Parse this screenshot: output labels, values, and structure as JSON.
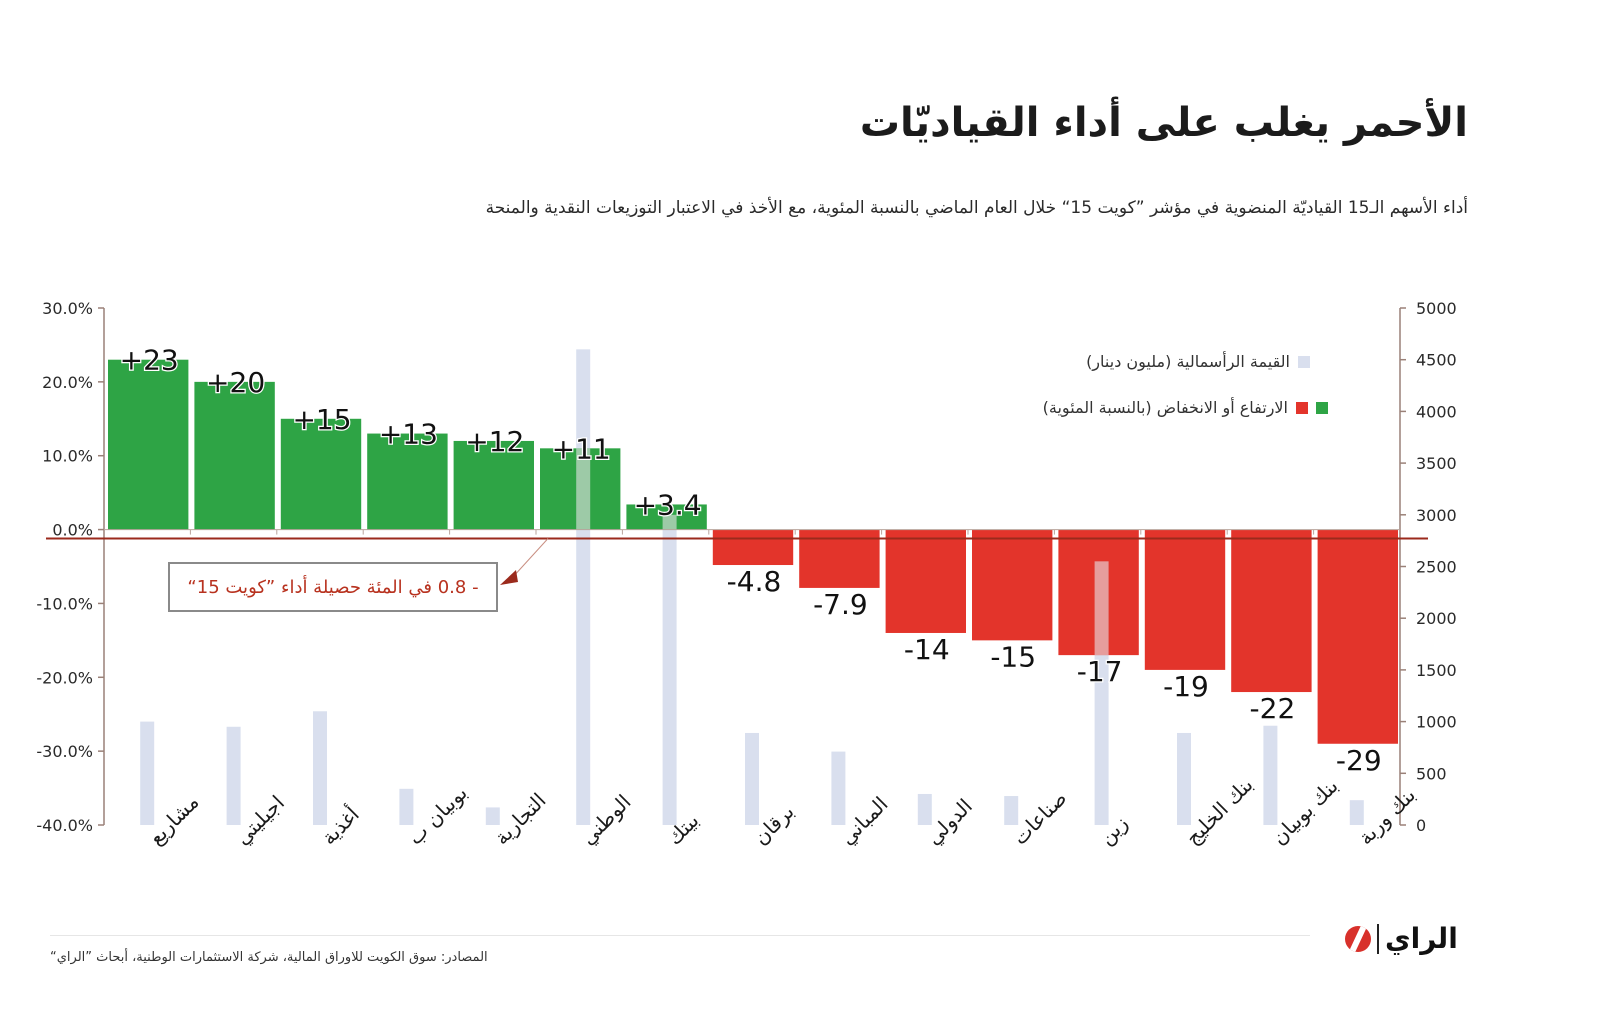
{
  "header": {
    "title": "الأحمر يغلب على أداء القياديّات",
    "subtitle": "أداء الأسهم الـ15 القياديّة المنضوية في مؤشر ”كويت 15“ خلال العام الماضي بالنسبة المئوية، مع الأخذ في الاعتبار التوزيعات النقدية والمنحة"
  },
  "legend": {
    "capital": "القيمة الرأسمالية (مليون دينار)",
    "change": "الارتفاع أو الانخفاض (بالنسبة المئوية)"
  },
  "callout": {
    "text": "- 0.8 في المئة حصيلة أداء ”كويت 15“",
    "value": -0.8
  },
  "footer": {
    "source": "المصادر: سوق الكويت للاوراق المالية، شركة الاستثمارات الوطنية، أبحاث ”الراي“",
    "logo_text": "الراي"
  },
  "colors": {
    "positive": "#2ea445",
    "negative": "#e3342b",
    "capital": "#d9dfee",
    "axis": "#9a8178",
    "zero_line": "#9b2a1c",
    "callout_text": "#b8321f"
  },
  "chart_data": {
    "type": "bar",
    "title": "الأحمر يغلب على أداء القياديّات",
    "categories": [
      "مشاريع",
      "اجيليتي",
      "أغذية",
      "بوبيان ب",
      "التجارية",
      "الوطني",
      "بيتك",
      "برقان",
      "المباني",
      "الدولي",
      "صناعات",
      "زين",
      "بنك الخليج",
      "بنك بوبيان",
      "بنك وربة"
    ],
    "series": [
      {
        "name": "الارتفاع أو الانخفاض (بالنسبة المئوية)",
        "axis": "left",
        "values": [
          23,
          20,
          15,
          13,
          12,
          11,
          3.4,
          -4.8,
          -7.9,
          -14,
          -15,
          -17,
          -19,
          -22,
          -29
        ],
        "labels": [
          "+23",
          "+20",
          "+15",
          "+13",
          "+12",
          "+11",
          "+3.4",
          "-4.8",
          "-7.9",
          "-14",
          "-15",
          "-17",
          "-19",
          "-22",
          "-29"
        ]
      },
      {
        "name": "القيمة الرأسمالية (مليون دينار)",
        "axis": "right",
        "values": [
          1000,
          950,
          1100,
          350,
          170,
          4600,
          3000,
          890,
          710,
          300,
          280,
          2550,
          890,
          960,
          240
        ]
      }
    ],
    "left_axis": {
      "range": [
        -40,
        30
      ],
      "ticks": [
        30,
        20,
        10,
        0,
        -10,
        -20,
        -30,
        -40
      ],
      "tick_labels": [
        "30.0%",
        "20.0%",
        "10.0%",
        "0.0%",
        "-10.0%",
        "-20.0%",
        "-30.0%",
        "-40.0%"
      ]
    },
    "right_axis": {
      "range": [
        0,
        5000
      ],
      "ticks": [
        5000,
        4500,
        4000,
        3500,
        3000,
        2500,
        2000,
        1500,
        1000,
        500,
        0
      ],
      "tick_labels": [
        "5000",
        "4500",
        "4000",
        "3500",
        "3000",
        "2500",
        "2000",
        "1500",
        "1000",
        "500",
        "0"
      ]
    },
    "reference_line": {
      "value": -0.8,
      "label": "- 0.8 في المئة حصيلة أداء ”كويت 15“"
    },
    "legend_position": "top-right",
    "grid": false
  }
}
